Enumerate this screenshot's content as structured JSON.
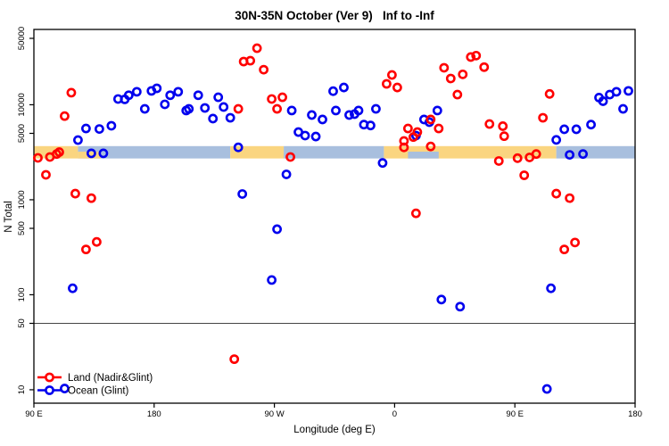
{
  "chart_data": {
    "type": "scatter",
    "title": "30N-35N October (Ver 9)   Inf to -Inf",
    "xlabel": "Longitude (deg E)",
    "ylabel": "N Total",
    "x_axis": {
      "min": 90,
      "max": 540,
      "ticks": [
        {
          "v": 90,
          "label": "90 E"
        },
        {
          "v": 180,
          "label": "180"
        },
        {
          "v": 270,
          "label": "90 W"
        },
        {
          "v": 360,
          "label": "0"
        },
        {
          "v": 450,
          "label": "90 E"
        },
        {
          "v": 540,
          "label": "180"
        }
      ]
    },
    "y_axis": {
      "scale": "log",
      "ticks": [
        {
          "v": 10,
          "label": "10"
        },
        {
          "v": 50,
          "label": "50"
        },
        {
          "v": 100,
          "label": "100"
        },
        {
          "v": 500,
          "label": "500"
        },
        {
          "v": 1000,
          "label": "1000"
        },
        {
          "v": 5000,
          "label": "5000"
        },
        {
          "v": 10000,
          "label": "10000"
        },
        {
          "v": 50000,
          "label": "50000"
        }
      ]
    },
    "reference_line_y": 50,
    "grid": false,
    "legend_position": "bottom-left",
    "colors": {
      "land": "#ff0000",
      "ocean": "#0000ee",
      "band_land": "#fad580",
      "band_ocean": "#a8bfde",
      "axis": "#000000",
      "ref_line": "#444444"
    },
    "band": {
      "top_n": 3670,
      "bottom_n": 2720,
      "segments": [
        {
          "from": 90,
          "to": 123,
          "surface": "land"
        },
        {
          "from": 123,
          "to": 237,
          "surface": "ocean"
        },
        {
          "from": 237,
          "to": 277,
          "surface": "land"
        },
        {
          "from": 277,
          "to": 352,
          "surface": "ocean"
        },
        {
          "from": 352,
          "to": 481,
          "surface": "land"
        },
        {
          "from": 481,
          "to": 540,
          "surface": "ocean"
        }
      ],
      "patches": [
        {
          "from": 123,
          "to": 140,
          "surface": "land",
          "part": "bottom"
        },
        {
          "from": 370,
          "to": 393,
          "surface": "ocean",
          "part": "bottom"
        }
      ]
    },
    "series": [
      {
        "name": "Land (Nadir&Glint)",
        "color_key": "land",
        "points": [
          [
            118,
            13400
          ],
          [
            113,
            7600
          ],
          [
            257,
            39400
          ],
          [
            247,
            28500
          ],
          [
            252,
            29100
          ],
          [
            262,
            23400
          ],
          [
            268,
            11500
          ],
          [
            276,
            12000
          ],
          [
            272,
            9060
          ],
          [
            243,
            9060
          ],
          [
            354,
            16600
          ],
          [
            358,
            20600
          ],
          [
            362,
            15200
          ],
          [
            370,
            5630
          ],
          [
            377,
            5160
          ],
          [
            367,
            4160
          ],
          [
            374,
            4570
          ],
          [
            397,
            24500
          ],
          [
            417,
            31800
          ],
          [
            421,
            32900
          ],
          [
            427,
            24900
          ],
          [
            402,
            18900
          ],
          [
            411,
            20900
          ],
          [
            407,
            12800
          ],
          [
            387,
            7000
          ],
          [
            393,
            5630
          ],
          [
            431,
            6270
          ],
          [
            441,
            5950
          ],
          [
            442,
            4670
          ],
          [
            476,
            13000
          ],
          [
            471,
            7300
          ],
          [
            93,
            2760
          ],
          [
            102,
            2820
          ],
          [
            107,
            3030
          ],
          [
            109,
            3170
          ],
          [
            99,
            1830
          ],
          [
            121,
            1160
          ],
          [
            133,
            1040
          ],
          [
            137,
            360
          ],
          [
            129,
            300
          ],
          [
            282,
            2820
          ],
          [
            367,
            3560
          ],
          [
            387,
            3640
          ],
          [
            376,
            720
          ],
          [
            438,
            2560
          ],
          [
            452,
            2740
          ],
          [
            461,
            2790
          ],
          [
            466,
            3030
          ],
          [
            457,
            1810
          ],
          [
            481,
            1160
          ],
          [
            491,
            1040
          ],
          [
            487,
            300
          ],
          [
            495,
            355
          ],
          [
            240,
            21
          ]
        ]
      },
      {
        "name": "Ocean (Glint)",
        "color_key": "ocean",
        "points": [
          [
            123,
            4250
          ],
          [
            129,
            5630
          ],
          [
            139,
            5560
          ],
          [
            148,
            6010
          ],
          [
            153,
            11500
          ],
          [
            158,
            11400
          ],
          [
            161,
            12600
          ],
          [
            167,
            13700
          ],
          [
            173,
            9060
          ],
          [
            178,
            14000
          ],
          [
            182,
            14900
          ],
          [
            188,
            10100
          ],
          [
            192,
            12600
          ],
          [
            198,
            13700
          ],
          [
            204,
            8700
          ],
          [
            206,
            9060
          ],
          [
            213,
            12600
          ],
          [
            218,
            9260
          ],
          [
            224,
            7150
          ],
          [
            228,
            12000
          ],
          [
            232,
            9470
          ],
          [
            237,
            7300
          ],
          [
            283,
            8700
          ],
          [
            298,
            7800
          ],
          [
            306,
            7000
          ],
          [
            314,
            13900
          ],
          [
            322,
            15200
          ],
          [
            316,
            8700
          ],
          [
            326,
            7800
          ],
          [
            330,
            7970
          ],
          [
            333,
            8700
          ],
          [
            337,
            6180
          ],
          [
            342,
            6050
          ],
          [
            346,
            9060
          ],
          [
            288,
            5160
          ],
          [
            293,
            4740
          ],
          [
            301,
            4630
          ],
          [
            392,
            8700
          ],
          [
            382,
            7000
          ],
          [
            386,
            6560
          ],
          [
            376,
            4740
          ],
          [
            513,
            11900
          ],
          [
            516,
            10900
          ],
          [
            521,
            12800
          ],
          [
            526,
            13700
          ],
          [
            535,
            14000
          ],
          [
            531,
            9060
          ],
          [
            507,
            6180
          ],
          [
            481,
            4270
          ],
          [
            487,
            5520
          ],
          [
            496,
            5520
          ],
          [
            133,
            3080
          ],
          [
            142,
            3080
          ],
          [
            246,
            1150
          ],
          [
            243,
            3560
          ],
          [
            351,
            2440
          ],
          [
            279,
            1850
          ],
          [
            272,
            490
          ],
          [
            268,
            143
          ],
          [
            395,
            89
          ],
          [
            409,
            75
          ],
          [
            477,
            117
          ],
          [
            119,
            117
          ],
          [
            474,
            10.2
          ],
          [
            113,
            10.3
          ],
          [
            491,
            2970
          ],
          [
            501,
            3030
          ]
        ]
      }
    ]
  }
}
